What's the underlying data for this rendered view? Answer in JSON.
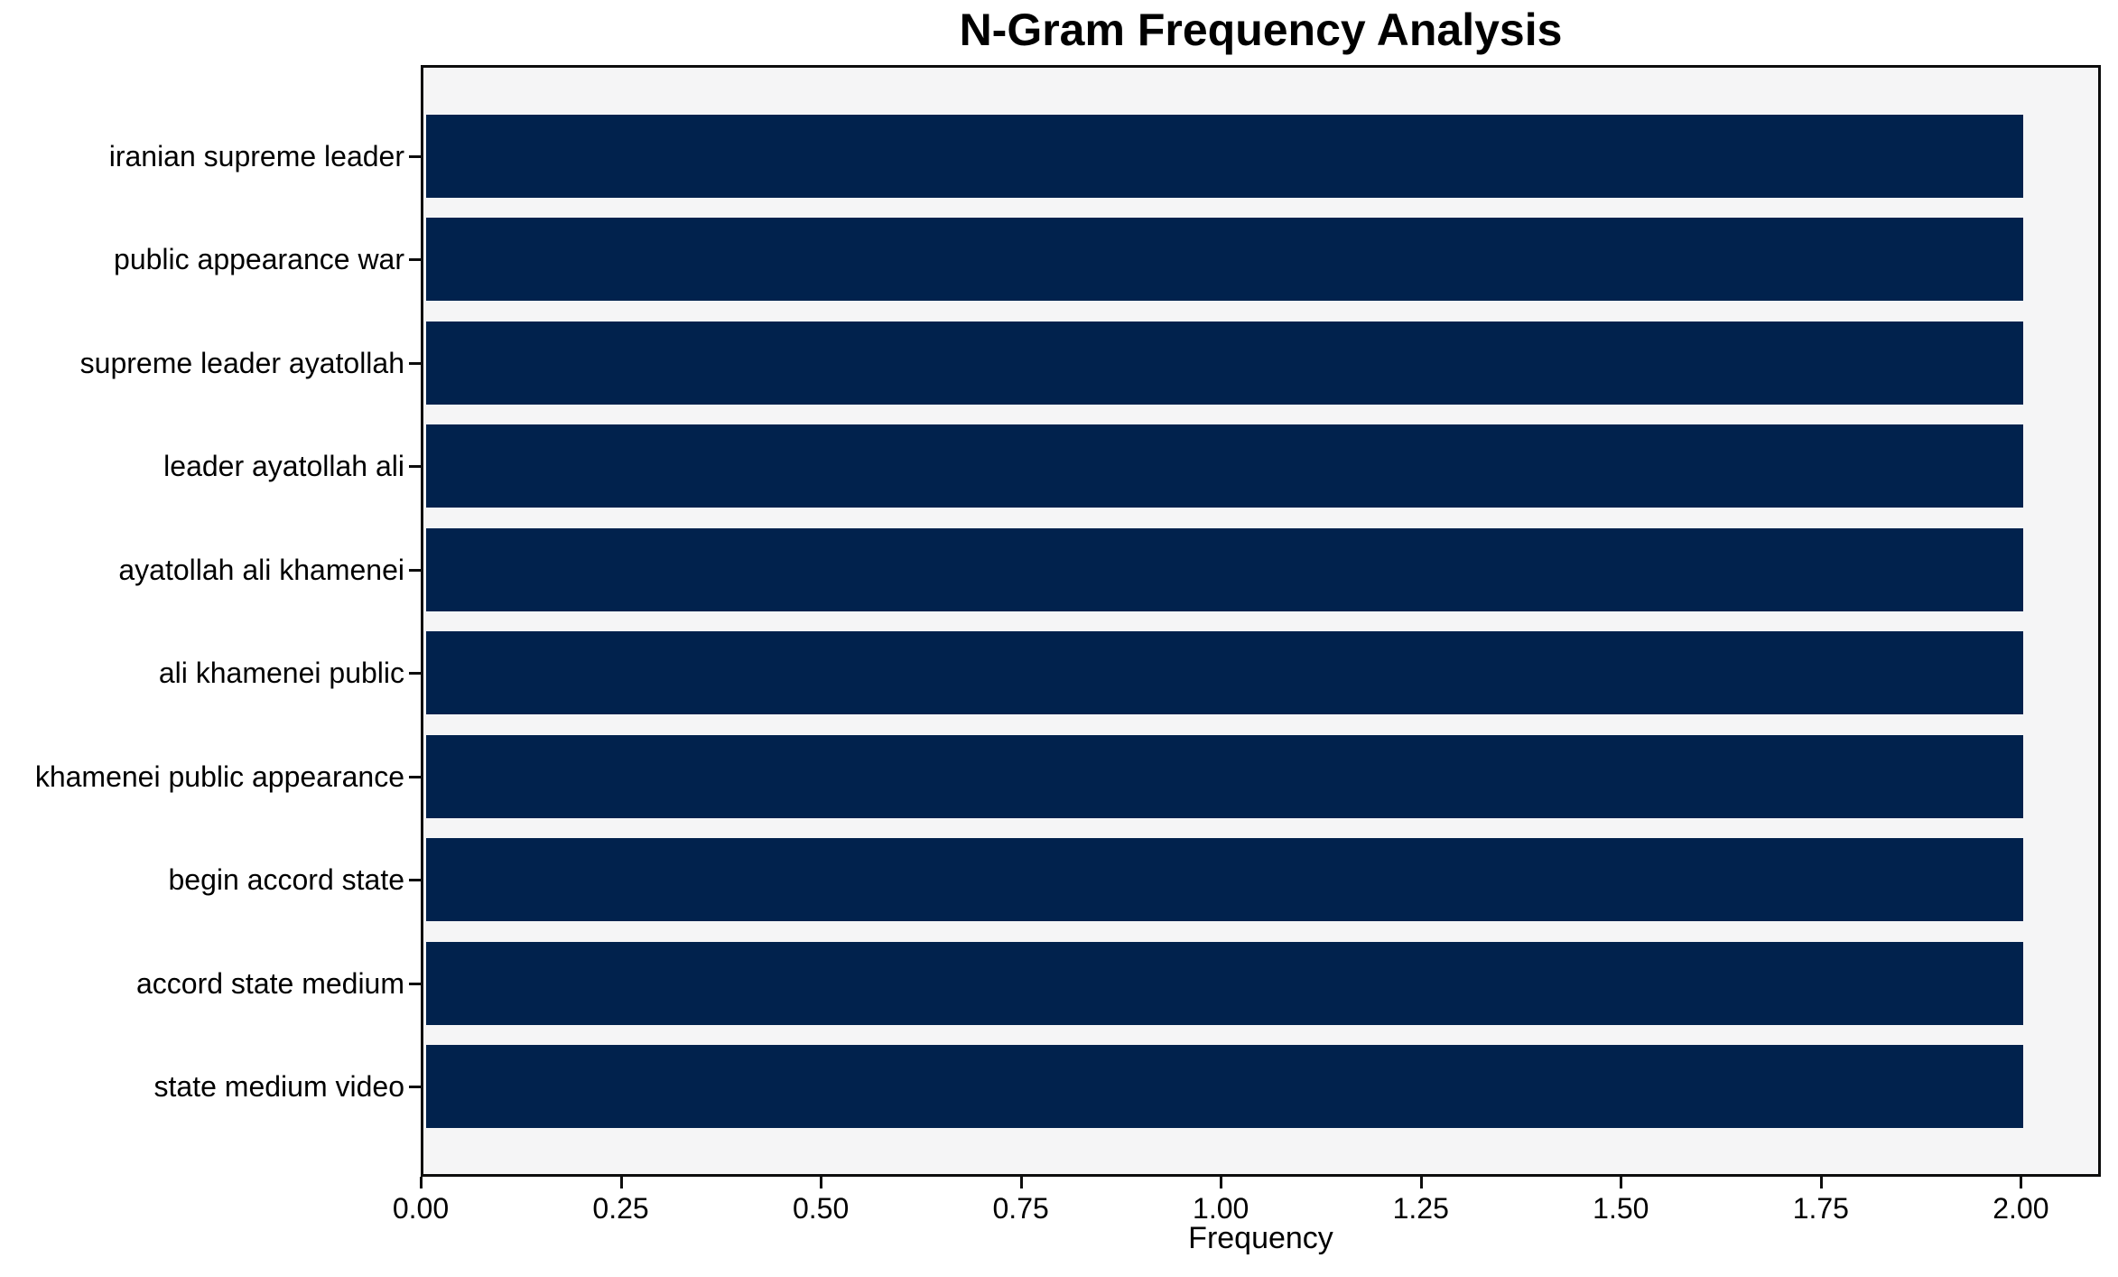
{
  "chart_data": {
    "type": "bar",
    "orientation": "horizontal",
    "title": "N-Gram Frequency Analysis",
    "xlabel": "Frequency",
    "ylabel": "",
    "categories": [
      "iranian supreme leader",
      "public appearance war",
      "supreme leader ayatollah",
      "leader ayatollah ali",
      "ayatollah ali khamenei",
      "ali khamenei public",
      "khamenei public appearance",
      "begin accord state",
      "accord state medium",
      "state medium video"
    ],
    "values": [
      2,
      2,
      2,
      2,
      2,
      2,
      2,
      2,
      2,
      2
    ],
    "xlim": [
      0,
      2.1
    ],
    "xtick_values": [
      0,
      0.25,
      0.5,
      0.75,
      1.0,
      1.25,
      1.5,
      1.75,
      2.0
    ],
    "xtick_labels": [
      "0.00",
      "0.25",
      "0.50",
      "0.75",
      "1.00",
      "1.25",
      "1.50",
      "1.75",
      "2.00"
    ],
    "grid": false,
    "legend": "none",
    "colors": {
      "bar": "#01224d",
      "plot_background": "#f5f5f6",
      "figure_background": "#ffffff",
      "spine": "#0d0d0d",
      "text": "#000000"
    }
  }
}
